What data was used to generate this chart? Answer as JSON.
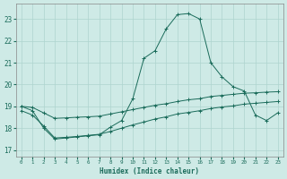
{
  "xlabel": "Humidex (Indice chaleur)",
  "xlim": [
    -0.5,
    23.5
  ],
  "ylim": [
    16.7,
    23.7
  ],
  "yticks": [
    17,
    18,
    19,
    20,
    21,
    22,
    23
  ],
  "xticks": [
    0,
    1,
    2,
    3,
    4,
    5,
    6,
    7,
    8,
    9,
    10,
    11,
    12,
    13,
    14,
    15,
    16,
    17,
    18,
    19,
    20,
    21,
    22,
    23
  ],
  "bg_color": "#ceeae6",
  "line_color": "#1a6b5a",
  "grid_color": "#aed4cf",
  "main_x": [
    0,
    1,
    2,
    3,
    4,
    5,
    6,
    7,
    8,
    9,
    10,
    11,
    12,
    13,
    14,
    15,
    16,
    17,
    18,
    19,
    20,
    21,
    22,
    23
  ],
  "main_y": [
    19.0,
    18.8,
    18.0,
    17.5,
    17.55,
    17.6,
    17.65,
    17.7,
    18.05,
    18.35,
    19.35,
    21.2,
    21.55,
    22.55,
    23.2,
    23.25,
    23.0,
    21.0,
    20.35,
    19.9,
    19.7,
    18.6,
    18.35,
    18.7
  ],
  "line2_x": [
    0,
    1,
    2,
    3,
    4,
    5,
    6,
    7,
    8,
    9,
    10,
    11,
    12,
    13,
    14,
    15,
    16,
    17,
    18,
    19,
    20,
    21,
    22,
    23
  ],
  "line2_y": [
    19.0,
    18.95,
    18.7,
    18.45,
    18.47,
    18.5,
    18.52,
    18.55,
    18.65,
    18.75,
    18.85,
    18.95,
    19.05,
    19.12,
    19.22,
    19.3,
    19.35,
    19.45,
    19.5,
    19.55,
    19.6,
    19.62,
    19.65,
    19.67
  ],
  "line3_x": [
    0,
    1,
    2,
    3,
    4,
    5,
    6,
    7,
    8,
    9,
    10,
    11,
    12,
    13,
    14,
    15,
    16,
    17,
    18,
    19,
    20,
    21,
    22,
    23
  ],
  "line3_y": [
    18.8,
    18.6,
    18.1,
    17.55,
    17.58,
    17.62,
    17.67,
    17.72,
    17.85,
    18.0,
    18.15,
    18.28,
    18.42,
    18.52,
    18.65,
    18.72,
    18.8,
    18.9,
    18.97,
    19.02,
    19.1,
    19.14,
    19.18,
    19.22
  ]
}
